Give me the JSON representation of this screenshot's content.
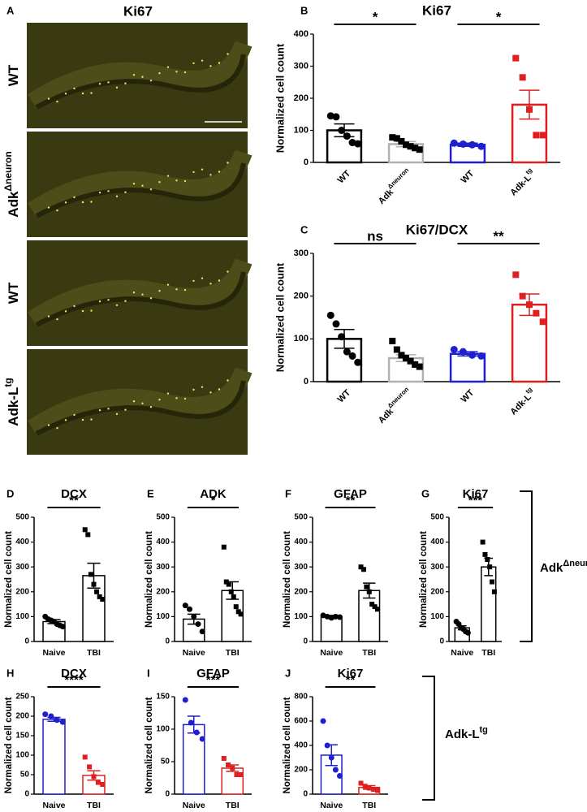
{
  "image_panel": {
    "letter": "A",
    "title": "Ki67",
    "rows": [
      {
        "label": "WT"
      },
      {
        "label": "Adk",
        "sup": "Δneuron"
      },
      {
        "label": "WT"
      },
      {
        "label": "Adk-L",
        "sup": "tg"
      }
    ]
  },
  "brackets": [
    {
      "label": "Adk",
      "sup": "Δneuron"
    },
    {
      "label": "Adk-L",
      "sup": "tg"
    }
  ],
  "chart_data": [
    {
      "type": "bar",
      "letter": "B",
      "title": "Ki67",
      "ylabel": "Normalized cell count",
      "categories": [
        "WT",
        "Adk",
        "WT",
        "Adk-L"
      ],
      "category_superscripts": [
        null,
        "Δneuron",
        null,
        "tg"
      ],
      "values": [
        100,
        57,
        55,
        180
      ],
      "errors": [
        20,
        8,
        5,
        45
      ],
      "points": [
        [
          145,
          142,
          100,
          82,
          62,
          58
        ],
        [
          78,
          75,
          66,
          55,
          50,
          45,
          40
        ],
        [
          60,
          57,
          55,
          50
        ],
        [
          325,
          265,
          165,
          85,
          85
        ]
      ],
      "colors": [
        "#000000",
        "#b0b0b0",
        "#1f1fd0",
        "#e02020"
      ],
      "point_colors": [
        "#000000",
        "#000000",
        "#1f1fd0",
        "#e02020"
      ],
      "markers": [
        "circle",
        "square",
        "circle",
        "square"
      ],
      "ylim": [
        0,
        400
      ],
      "yticks": [
        0,
        100,
        200,
        300,
        400
      ],
      "significance": [
        "*",
        "*"
      ]
    },
    {
      "type": "bar",
      "letter": "C",
      "title": "Ki67/DCX",
      "ylabel": "Normalized cell count",
      "categories": [
        "WT",
        "Adk",
        "WT",
        "Adk-L"
      ],
      "category_superscripts": [
        null,
        "Δneuron",
        null,
        "tg"
      ],
      "values": [
        100,
        55,
        65,
        180
      ],
      "errors": [
        22,
        8,
        5,
        25
      ],
      "points": [
        [
          155,
          135,
          105,
          70,
          60,
          45
        ],
        [
          95,
          75,
          62,
          55,
          48,
          40,
          35
        ],
        [
          75,
          70,
          62,
          60
        ],
        [
          250,
          200,
          180,
          160,
          140
        ]
      ],
      "colors": [
        "#000000",
        "#b0b0b0",
        "#1f1fd0",
        "#e02020"
      ],
      "point_colors": [
        "#000000",
        "#000000",
        "#1f1fd0",
        "#e02020"
      ],
      "markers": [
        "circle",
        "square",
        "circle",
        "square"
      ],
      "ylim": [
        0,
        300
      ],
      "yticks": [
        0,
        100,
        200,
        300
      ],
      "significance": [
        "ns",
        "**"
      ]
    },
    {
      "type": "bar",
      "letter": "D",
      "title": "DCX",
      "ylabel": "Normalized cell count",
      "categories": [
        "Naive",
        "TBI"
      ],
      "values": [
        80,
        265
      ],
      "errors": [
        8,
        50
      ],
      "points": [
        [
          100,
          90,
          85,
          80,
          70,
          65,
          60
        ],
        [
          450,
          430,
          270,
          230,
          200,
          180,
          170
        ]
      ],
      "colors": [
        "#000000",
        "#000000"
      ],
      "point_colors": [
        "#000000",
        "#000000"
      ],
      "markers": [
        "circle",
        "square"
      ],
      "ylim": [
        0,
        500
      ],
      "yticks": [
        0,
        100,
        200,
        300,
        400,
        500
      ],
      "significance": [
        "**"
      ]
    },
    {
      "type": "bar",
      "letter": "E",
      "title": "ADK",
      "ylabel": "Normalized cell count",
      "categories": [
        "Naive",
        "TBI"
      ],
      "values": [
        90,
        205
      ],
      "errors": [
        20,
        35
      ],
      "points": [
        [
          145,
          130,
          100,
          70,
          40
        ],
        [
          380,
          240,
          230,
          200,
          180,
          140,
          120,
          110
        ]
      ],
      "colors": [
        "#000000",
        "#000000"
      ],
      "point_colors": [
        "#000000",
        "#000000"
      ],
      "markers": [
        "circle",
        "square"
      ],
      "ylim": [
        0,
        500
      ],
      "yticks": [
        0,
        100,
        200,
        300,
        400,
        500
      ],
      "significance": [
        "*"
      ]
    },
    {
      "type": "bar",
      "letter": "F",
      "title": "GFAP",
      "ylabel": "Normalized cell count",
      "categories": [
        "Naive",
        "TBI"
      ],
      "values": [
        100,
        205
      ],
      "errors": [
        5,
        30
      ],
      "points": [
        [
          105,
          100,
          95,
          100,
          98
        ],
        [
          300,
          290,
          220,
          200,
          150,
          140,
          130
        ]
      ],
      "colors": [
        "#000000",
        "#000000"
      ],
      "point_colors": [
        "#000000",
        "#000000"
      ],
      "markers": [
        "circle",
        "square"
      ],
      "ylim": [
        0,
        500
      ],
      "yticks": [
        0,
        100,
        200,
        300,
        400,
        500
      ],
      "significance": [
        "**"
      ]
    },
    {
      "type": "bar",
      "letter": "G",
      "title": "Ki67",
      "ylabel": "Normalized cell count",
      "categories": [
        "Naive",
        "TBI"
      ],
      "values": [
        55,
        300
      ],
      "errors": [
        8,
        35
      ],
      "points": [
        [
          80,
          70,
          55,
          50,
          40,
          35
        ],
        [
          400,
          350,
          330,
          300,
          240,
          200
        ]
      ],
      "colors": [
        "#000000",
        "#000000"
      ],
      "point_colors": [
        "#000000",
        "#000000"
      ],
      "markers": [
        "circle",
        "square"
      ],
      "ylim": [
        0,
        500
      ],
      "yticks": [
        0,
        100,
        200,
        300,
        400,
        500
      ],
      "significance": [
        "***"
      ]
    },
    {
      "type": "bar",
      "letter": "H",
      "title": "DCX",
      "ylabel": "Normalized cell count",
      "categories": [
        "Naive",
        "TBI"
      ],
      "values": [
        192,
        48
      ],
      "errors": [
        5,
        12
      ],
      "points": [
        [
          205,
          200,
          190,
          185
        ],
        [
          95,
          70,
          45,
          30,
          25
        ]
      ],
      "colors": [
        "#1f1fd0",
        "#e02020"
      ],
      "point_colors": [
        "#1f1fd0",
        "#e02020"
      ],
      "markers": [
        "circle",
        "square"
      ],
      "ylim": [
        0,
        250
      ],
      "yticks": [
        0,
        50,
        100,
        150,
        200,
        250
      ],
      "significance": [
        "****"
      ]
    },
    {
      "type": "bar",
      "letter": "I",
      "title": "GFAP",
      "ylabel": "Normalized cell count",
      "categories": [
        "Naive",
        "TBI"
      ],
      "values": [
        107,
        40
      ],
      "errors": [
        13,
        5
      ],
      "points": [
        [
          145,
          110,
          95,
          85
        ],
        [
          55,
          45,
          40,
          30,
          30
        ]
      ],
      "colors": [
        "#1f1fd0",
        "#e02020"
      ],
      "point_colors": [
        "#1f1fd0",
        "#e02020"
      ],
      "markers": [
        "circle",
        "square"
      ],
      "ylim": [
        0,
        150
      ],
      "yticks": [
        0,
        50,
        100,
        150
      ],
      "significance": [
        "***"
      ]
    },
    {
      "type": "bar",
      "letter": "J",
      "title": "Ki67",
      "ylabel": "Normalized cell count",
      "categories": [
        "Naive",
        "TBI"
      ],
      "values": [
        320,
        55
      ],
      "errors": [
        85,
        15
      ],
      "points": [
        [
          600,
          400,
          300,
          200,
          150
        ],
        [
          90,
          65,
          50,
          40,
          30
        ]
      ],
      "colors": [
        "#1f1fd0",
        "#e02020"
      ],
      "point_colors": [
        "#1f1fd0",
        "#e02020"
      ],
      "markers": [
        "circle",
        "square"
      ],
      "ylim": [
        0,
        800
      ],
      "yticks": [
        0,
        200,
        400,
        600,
        800
      ],
      "significance": [
        "**"
      ]
    }
  ]
}
